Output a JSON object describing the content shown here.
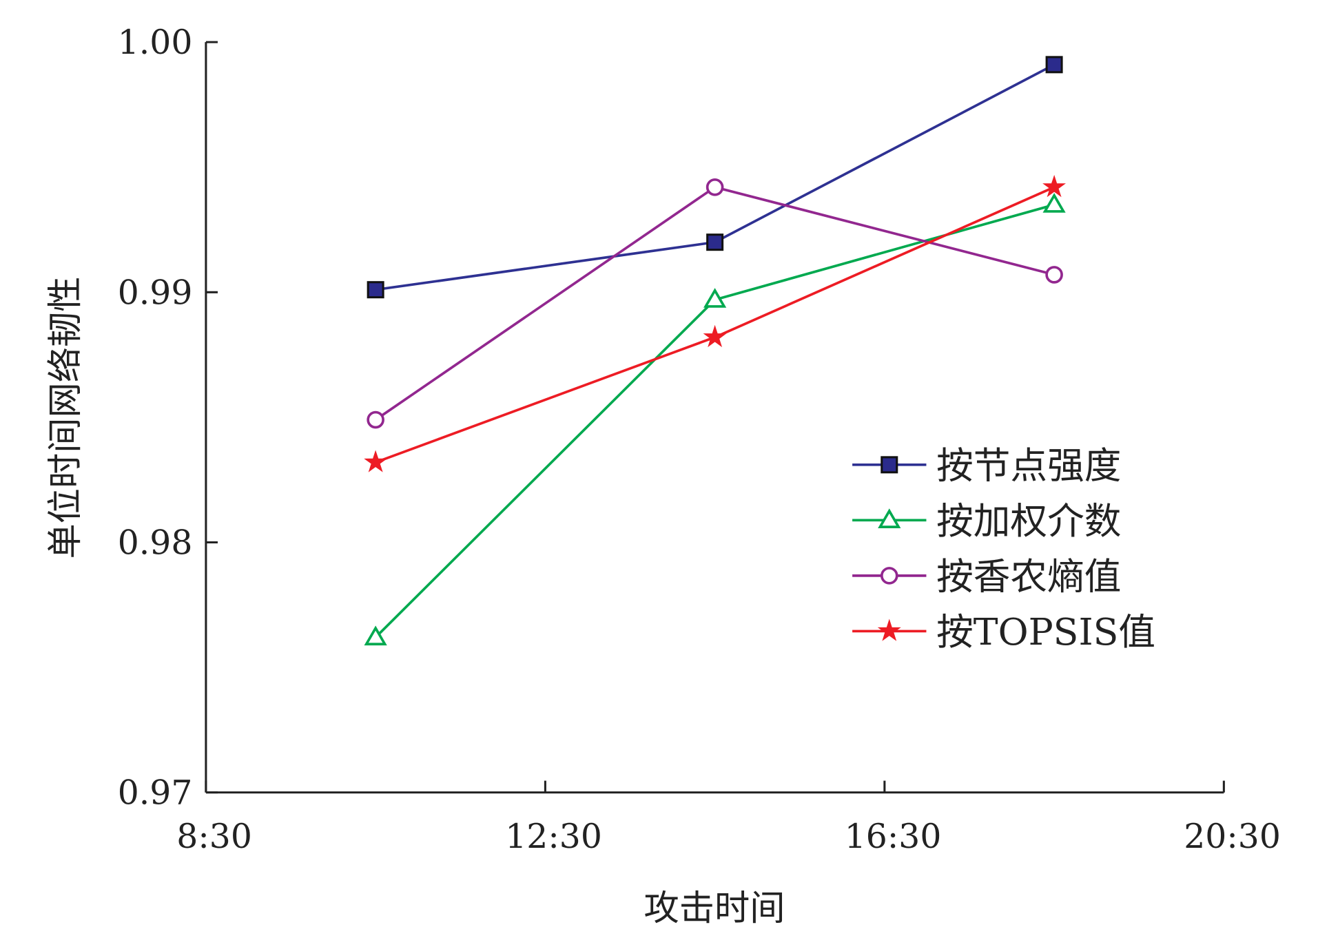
{
  "chart_data": {
    "type": "line",
    "title": "",
    "xlabel": "攻击时间",
    "ylabel": "单位时间网络韧性",
    "x_ticks": [
      "8:30",
      "12:30",
      "16:30",
      "20:30"
    ],
    "x_tick_hours": [
      8.5,
      12.5,
      16.5,
      20.5
    ],
    "y_ticks": [
      "0.97",
      "0.98",
      "0.99",
      "1.00"
    ],
    "y_tick_values": [
      0.97,
      0.98,
      0.99,
      1.0
    ],
    "xlim": [
      8.5,
      20.5
    ],
    "ylim": [
      0.97,
      1.0
    ],
    "x": [
      10.5,
      14.5,
      18.5
    ],
    "legend_position": "center-right",
    "series": [
      {
        "name": "按节点强度",
        "marker": "square",
        "color": "#2e3192",
        "values": [
          0.9901,
          0.992,
          0.9991
        ]
      },
      {
        "name": "按加权介数",
        "marker": "triangle",
        "color": "#00a94f",
        "values": [
          0.9762,
          0.9897,
          0.9935
        ]
      },
      {
        "name": "按香农熵值",
        "marker": "circle",
        "color": "#92278f",
        "values": [
          0.9849,
          0.9942,
          0.9907
        ]
      },
      {
        "name": "按TOPSIS值",
        "marker": "star",
        "color": "#ed1c24",
        "values": [
          0.9832,
          0.9882,
          0.9942
        ]
      }
    ]
  }
}
